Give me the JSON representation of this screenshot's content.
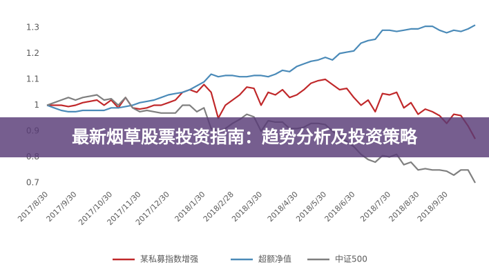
{
  "chart_data": {
    "type": "line",
    "categories": [
      "2017/8/30",
      null,
      null,
      null,
      "2017/9/30",
      null,
      null,
      null,
      null,
      "2017/10/30",
      null,
      null,
      null,
      "2017/11/30",
      null,
      null,
      null,
      "2017/12/30",
      null,
      null,
      null,
      null,
      "2018/1/30",
      null,
      null,
      null,
      "2018/2/28",
      null,
      null,
      null,
      "2018/3/30",
      null,
      null,
      null,
      null,
      "2018/4/30",
      null,
      null,
      null,
      "2018/5/30",
      null,
      null,
      null,
      "2018/6/30",
      null,
      null,
      null,
      null,
      "2018/7/30",
      null,
      null,
      null,
      "2018/8/30",
      null,
      null,
      null,
      "2018/9/30",
      null,
      null,
      null,
      null
    ],
    "series": [
      {
        "name": "某私募指数增强",
        "color": "#c0282a",
        "values": [
          1.0,
          1.0,
          1.0,
          0.995,
          1.0,
          1.01,
          1.015,
          1.02,
          1.0,
          1.02,
          0.99,
          1.03,
          0.99,
          0.985,
          0.99,
          1.0,
          1.0,
          1.01,
          1.02,
          1.05,
          1.06,
          1.05,
          1.08,
          1.05,
          0.95,
          1.0,
          1.02,
          1.04,
          1.07,
          1.065,
          1.0,
          1.05,
          1.04,
          1.06,
          1.03,
          1.04,
          1.06,
          1.085,
          1.095,
          1.1,
          1.08,
          1.06,
          1.065,
          1.03,
          1.0,
          1.02,
          0.975,
          1.045,
          1.04,
          1.05,
          0.99,
          1.01,
          0.965,
          0.985,
          0.975,
          0.96,
          0.93,
          0.965,
          0.96,
          0.92,
          0.87
        ]
      },
      {
        "name": "超额净值",
        "color": "#4a8ab8",
        "values": [
          1.0,
          0.99,
          0.98,
          0.975,
          0.975,
          0.98,
          0.98,
          0.98,
          0.98,
          0.99,
          0.99,
          0.995,
          1.0,
          1.01,
          1.015,
          1.02,
          1.03,
          1.04,
          1.045,
          1.05,
          1.06,
          1.075,
          1.09,
          1.12,
          1.11,
          1.115,
          1.115,
          1.11,
          1.11,
          1.115,
          1.115,
          1.11,
          1.12,
          1.135,
          1.13,
          1.15,
          1.16,
          1.17,
          1.175,
          1.185,
          1.175,
          1.2,
          1.205,
          1.21,
          1.24,
          1.25,
          1.255,
          1.29,
          1.29,
          1.285,
          1.29,
          1.295,
          1.295,
          1.305,
          1.305,
          1.29,
          1.28,
          1.29,
          1.285,
          1.295,
          1.31
        ]
      },
      {
        "name": "中证500",
        "color": "#7f7f7f",
        "values": [
          1.0,
          1.01,
          1.02,
          1.03,
          1.02,
          1.03,
          1.035,
          1.04,
          1.02,
          1.025,
          1.0,
          1.03,
          0.99,
          0.975,
          0.98,
          0.975,
          0.97,
          0.97,
          0.97,
          1.0,
          1.0,
          0.975,
          0.99,
          0.91,
          0.9,
          0.91,
          0.93,
          0.945,
          0.965,
          0.955,
          0.9,
          0.94,
          0.935,
          0.935,
          0.91,
          0.91,
          0.915,
          0.93,
          0.93,
          0.925,
          0.9,
          0.88,
          0.86,
          0.84,
          0.81,
          0.79,
          0.78,
          0.805,
          0.8,
          0.81,
          0.77,
          0.78,
          0.75,
          0.755,
          0.75,
          0.75,
          0.745,
          0.73,
          0.75,
          0.75,
          0.7
        ]
      }
    ],
    "ylim": [
      0.7,
      1.3
    ],
    "yticks": [
      0.7,
      0.8,
      0.9,
      1,
      1.1,
      1.2,
      1.3
    ],
    "grid": false,
    "legend": "bottom"
  },
  "banner": {
    "text": "最新烟草股票投资指南：趋势分析及投资策略"
  }
}
